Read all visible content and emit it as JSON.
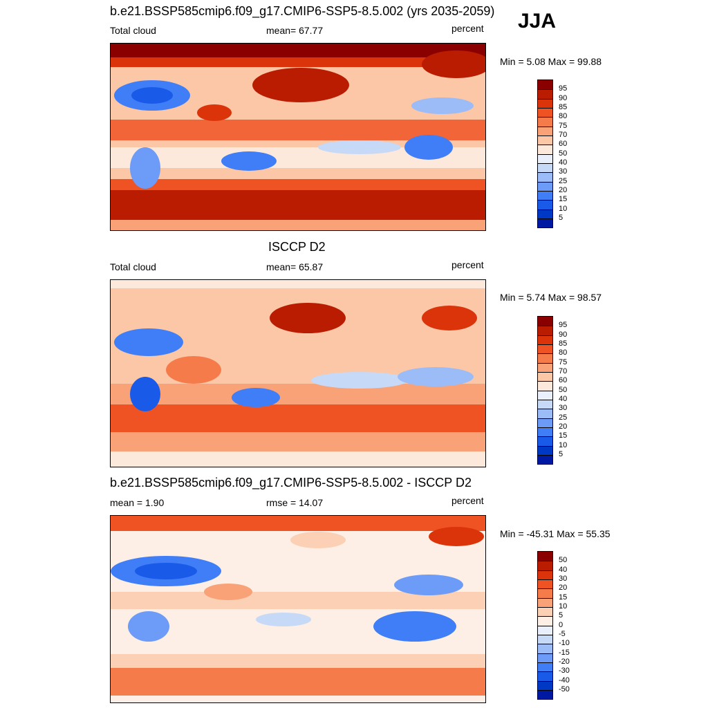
{
  "season": "JJA",
  "palette_abs": [
    "#000080",
    "#0019a3",
    "#0038c6",
    "#1a5ae8",
    "#3f7ef7",
    "#6c9cf7",
    "#9bbcf7",
    "#c6d9f7",
    "#e9f0fb",
    "#fde9dc",
    "#fbc7a6",
    "#f9a277",
    "#f67b4b",
    "#ef5324",
    "#db340b",
    "#b91c00",
    "#8a0000"
  ],
  "palette_diff": [
    "#000080",
    "#0019a3",
    "#0038c6",
    "#1a5ae8",
    "#3f7ef7",
    "#6c9cf7",
    "#9bbcf7",
    "#c6d9f7",
    "#e9f0fb",
    "#fdefe5",
    "#fbd0b4",
    "#f9a277",
    "#f67b4b",
    "#ef5324",
    "#db340b",
    "#b91c00",
    "#8a0000"
  ],
  "panels": [
    {
      "title": "b.e21.BSSP585cmip6.f09_g17.CMIP6-SSP5-8.5.002 (yrs 2035-2059)",
      "left_label": "Total cloud",
      "center_label": "mean=  67.77",
      "units": "percent",
      "range_label": "Min =    5.08 Max =  99.88",
      "colorbar_levels": [
        "95",
        "90",
        "85",
        "80",
        "75",
        "70",
        "60",
        "50",
        "40",
        "30",
        "25",
        "20",
        "15",
        "10",
        "5"
      ]
    },
    {
      "title": "ISCCP D2",
      "left_label": "Total cloud",
      "center_label": "mean=  65.87",
      "units": "percent",
      "range_label": "Min =    5.74 Max =  98.57",
      "colorbar_levels": [
        "95",
        "90",
        "85",
        "80",
        "75",
        "70",
        "60",
        "50",
        "40",
        "30",
        "25",
        "20",
        "15",
        "10",
        "5"
      ]
    },
    {
      "title": "b.e21.BSSP585cmip6.f09_g17.CMIP6-SSP5-8.5.002 - ISCCP D2",
      "left_label": "mean =    1.90",
      "center_label": "rmse =  14.07",
      "units": "percent",
      "range_label": "Min = -45.31 Max =  55.35",
      "colorbar_levels": [
        "50",
        "40",
        "30",
        "20",
        "15",
        "10",
        "5",
        "0",
        "-5",
        "-10",
        "-15",
        "-20",
        "-30",
        "-40",
        "-50"
      ]
    }
  ]
}
